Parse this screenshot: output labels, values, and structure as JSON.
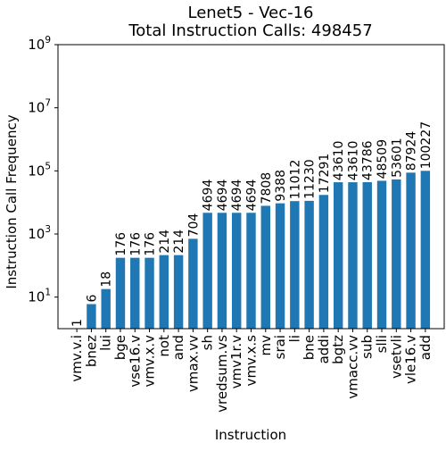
{
  "chart_data": {
    "type": "bar",
    "title": "Lenet5 - Vec-16",
    "subtitle": "Total Instruction Calls: 498457",
    "xlabel": "Instruction",
    "ylabel": "Instruction Call Frequency",
    "yscale": "log",
    "ylim": [
      1,
      1000000000
    ],
    "ytick_labels": [
      {
        "base": "10",
        "exp": "1",
        "value": 10
      },
      {
        "base": "10",
        "exp": "3",
        "value": 1000
      },
      {
        "base": "10",
        "exp": "5",
        "value": 100000
      },
      {
        "base": "10",
        "exp": "7",
        "value": 10000000
      },
      {
        "base": "10",
        "exp": "9",
        "value": 1000000000
      }
    ],
    "grid": false,
    "bar_color": "#1f77b4",
    "categories": [
      "vmv.v.i",
      "bnez",
      "lui",
      "bge",
      "vse16.v",
      "vmv.x.v",
      "not",
      "and",
      "vmax.vv",
      "sh",
      "vredsum.vs",
      "vmv1r.v",
      "vmv.x.s",
      "mv",
      "srai",
      "li",
      "bne",
      "addi",
      "bgtz",
      "vmacc.vv",
      "sub",
      "slli",
      "vsetvli",
      "vle16.v",
      "add"
    ],
    "values": [
      1,
      6,
      18,
      176,
      176,
      176,
      214,
      214,
      704,
      4694,
      4694,
      4694,
      4694,
      7808,
      9388,
      11012,
      11230,
      17291,
      43610,
      43610,
      43786,
      48509,
      53601,
      87924,
      100227
    ],
    "value_labels": [
      "1",
      "6",
      "18",
      "176",
      "176",
      "176",
      "214",
      "214",
      "704",
      "4694",
      "4694",
      "4694",
      "4694",
      "7808",
      "9388",
      "11012",
      "11230",
      "17291",
      "43610",
      "43610",
      "43786",
      "48509",
      "53601",
      "87924",
      "100227"
    ]
  }
}
